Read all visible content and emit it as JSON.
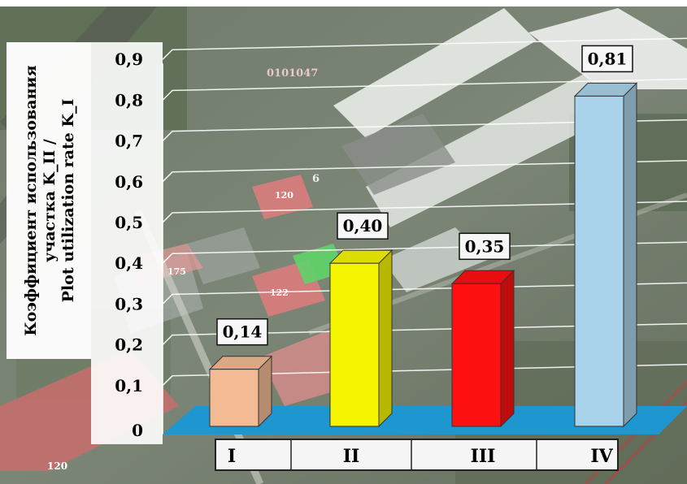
{
  "chart_data": {
    "type": "bar",
    "ylabel_lines": [
      "Коэффициент использования",
      "участка K_II /",
      "Plot utilization rate K_I"
    ],
    "ylim": [
      0,
      0.9
    ],
    "yticks": [
      "0",
      "0,1",
      "0,2",
      "0,3",
      "0,4",
      "0,5",
      "0,6",
      "0,7",
      "0,8",
      "0,9"
    ],
    "categories": [
      "I",
      "II",
      "III",
      "IV"
    ],
    "values": [
      0.14,
      0.4,
      0.35,
      0.81
    ],
    "data_labels": [
      "0,14",
      "0,40",
      "0,35",
      "0,81"
    ],
    "bar_colors": [
      "#f2bb93",
      "#f5f500",
      "#ff1010",
      "#a8d3ea"
    ],
    "floor_color": "#1e96cf",
    "grid": true
  },
  "background": {
    "map_labels": [
      "0101047",
      "6",
      "120",
      "175",
      "122",
      "120"
    ],
    "map_label_color": "#e8c8c8"
  }
}
